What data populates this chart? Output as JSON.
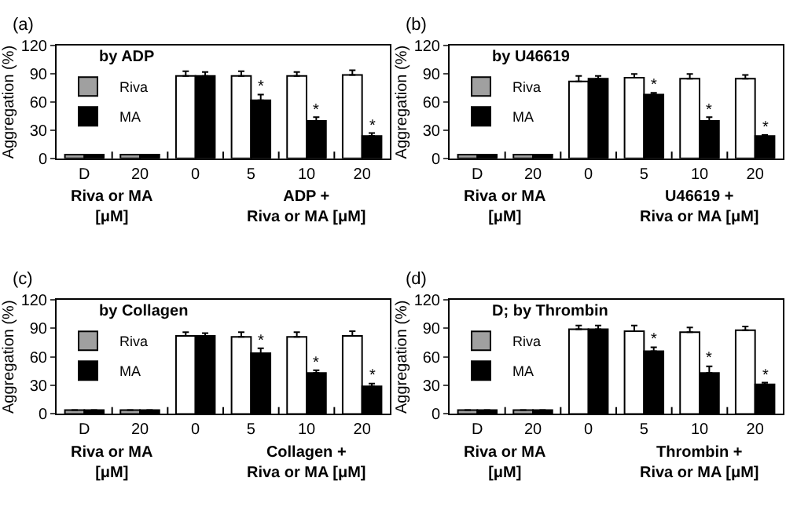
{
  "chart_data": [
    {
      "type": "bar",
      "title": "(a)",
      "ylabel": "Aggregation (%)",
      "categories": [
        "D",
        "20",
        "0",
        "5",
        "10",
        "20"
      ],
      "ylim": [
        0,
        120
      ],
      "yticks": [
        0,
        30,
        60,
        90,
        120
      ],
      "legend": "top left",
      "annotations": [
        "by ADP",
        "Riva or MA\n[μM]",
        "ADP +\nRiva or MA [μM]"
      ],
      "series": [
        {
          "name": "Riva",
          "colors": [
            "#a0a0a0",
            "#a0a0a0",
            "#ffffff",
            "#ffffff",
            "#ffffff",
            "#ffffff"
          ],
          "values": [
            4,
            4,
            88,
            88,
            88,
            89
          ],
          "errors": [
            null,
            null,
            [
              88,
              93
            ],
            [
              88,
              93
            ],
            [
              88,
              92
            ],
            [
              89,
              94
            ]
          ]
        },
        {
          "name": "MA",
          "color": "#000000",
          "values": [
            4,
            4,
            88,
            62,
            40,
            24
          ],
          "errors": [
            null,
            null,
            [
              88,
              92
            ],
            [
              62,
              68
            ],
            [
              40,
              44
            ],
            [
              24,
              27
            ]
          ],
          "value_labels": [
            null,
            null,
            null,
            "*",
            "*",
            "*"
          ]
        }
      ]
    },
    {
      "type": "bar",
      "title": "(b)",
      "ylabel": "Aggregation (%)",
      "categories": [
        "D",
        "20",
        "0",
        "5",
        "10",
        "20"
      ],
      "ylim": [
        0,
        120
      ],
      "yticks": [
        0,
        30,
        60,
        90,
        120
      ],
      "legend": "top left",
      "annotations": [
        "by U46619",
        "Riva or MA\n[μM]",
        "U46619 +\nRiva or MA [μM]"
      ],
      "series": [
        {
          "name": "Riva",
          "colors": [
            "#a0a0a0",
            "#a0a0a0",
            "#ffffff",
            "#ffffff",
            "#ffffff",
            "#ffffff"
          ],
          "values": [
            4,
            4,
            82,
            86,
            85,
            85
          ],
          "errors": [
            null,
            null,
            [
              82,
              88
            ],
            [
              86,
              90
            ],
            [
              85,
              90
            ],
            [
              85,
              89
            ]
          ]
        },
        {
          "name": "MA",
          "color": "#000000",
          "values": [
            4,
            4,
            85,
            68,
            40,
            24
          ],
          "errors": [
            null,
            null,
            [
              85,
              88
            ],
            [
              68,
              70
            ],
            [
              40,
              44
            ],
            [
              24,
              25
            ]
          ],
          "value_labels": [
            null,
            null,
            null,
            "*",
            "*",
            "*"
          ]
        }
      ]
    },
    {
      "type": "bar",
      "title": "(c)",
      "ylabel": "Aggregation (%)",
      "categories": [
        "D",
        "20",
        "0",
        "5",
        "10",
        "20"
      ],
      "ylim": [
        0,
        120
      ],
      "yticks": [
        0,
        30,
        60,
        90,
        120
      ],
      "legend": "top left",
      "annotations": [
        "by Collagen",
        "Riva or MA\n[μM]",
        "Collagen +\nRiva or MA [μM]"
      ],
      "series": [
        {
          "name": "Riva",
          "colors": [
            "#a0a0a0",
            "#a0a0a0",
            "#ffffff",
            "#ffffff",
            "#ffffff",
            "#ffffff"
          ],
          "values": [
            4,
            4,
            82,
            81,
            81,
            82
          ],
          "errors": [
            null,
            null,
            [
              82,
              86
            ],
            [
              81,
              86
            ],
            [
              81,
              86
            ],
            [
              82,
              87
            ]
          ]
        },
        {
          "name": "MA",
          "color": "#000000",
          "values": [
            4,
            4,
            82,
            64,
            43,
            29
          ],
          "errors": [
            null,
            null,
            [
              82,
              85
            ],
            [
              64,
              69
            ],
            [
              43,
              46
            ],
            [
              29,
              32
            ]
          ],
          "value_labels": [
            null,
            null,
            null,
            "*",
            "*",
            "*"
          ]
        }
      ]
    },
    {
      "type": "bar",
      "title": "(d)",
      "ylabel": "Aggregation (%)",
      "categories": [
        "D",
        "20",
        "0",
        "5",
        "10",
        "20"
      ],
      "ylim": [
        0,
        120
      ],
      "yticks": [
        0,
        30,
        60,
        90,
        120
      ],
      "legend": "top left",
      "annotations": [
        "D; by Thrombin",
        "Riva or MA\n[μM]",
        "Thrombin +\nRiva or MA [μM]"
      ],
      "series": [
        {
          "name": "Riva",
          "colors": [
            "#a0a0a0",
            "#a0a0a0",
            "#ffffff",
            "#ffffff",
            "#ffffff",
            "#ffffff"
          ],
          "values": [
            4,
            4,
            89,
            87,
            86,
            88
          ],
          "errors": [
            null,
            null,
            [
              89,
              93
            ],
            [
              87,
              93
            ],
            [
              86,
              91
            ],
            [
              88,
              92
            ]
          ]
        },
        {
          "name": "MA",
          "color": "#000000",
          "values": [
            4,
            4,
            89,
            66,
            43,
            31
          ],
          "errors": [
            null,
            null,
            [
              89,
              93
            ],
            [
              66,
              70
            ],
            [
              43,
              50
            ],
            [
              31,
              33
            ]
          ],
          "value_labels": [
            null,
            null,
            null,
            "*",
            "*",
            "*"
          ]
        }
      ]
    }
  ]
}
